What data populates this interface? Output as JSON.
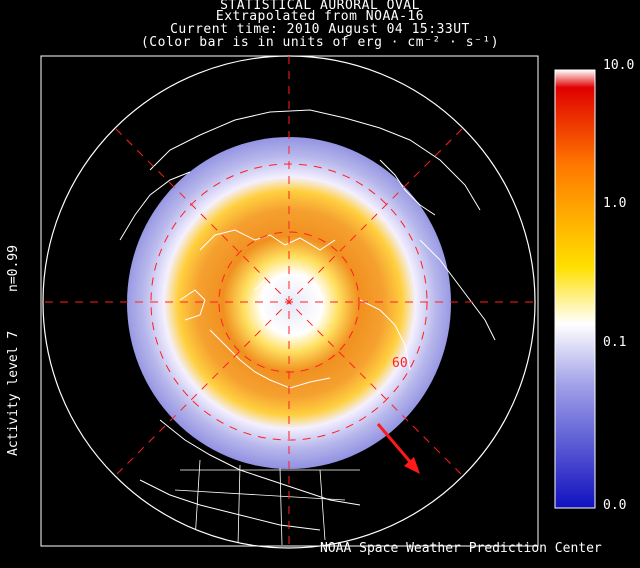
{
  "title": {
    "line1": "STATISTICAL AURORAL OVAL",
    "line2": "Extrapolated from NOAA-16",
    "line3": "Current time: 2010 August 04 15:33UT",
    "line4": "(Color bar is in units of erg · cm⁻² · s⁻¹)"
  },
  "side": {
    "n_value": "n=0.99",
    "activity": "Activity level 7"
  },
  "credit": "NOAA Space Weather Prediction Center",
  "map": {
    "latitude_label": "60",
    "colors": {
      "frame": "#ffffff",
      "grid": "#ff2020",
      "arrow": "#ff1a1a",
      "coast": "#ffffff",
      "background": "#000000"
    }
  },
  "colorbar": {
    "ticks": [
      "10.0",
      "1.0",
      "0.1",
      "0.0"
    ],
    "scale": "log",
    "stops": [
      "#1010c0",
      "#8c8ce0",
      "#ffffff",
      "#ffe000",
      "#ff8000",
      "#e00000"
    ]
  }
}
